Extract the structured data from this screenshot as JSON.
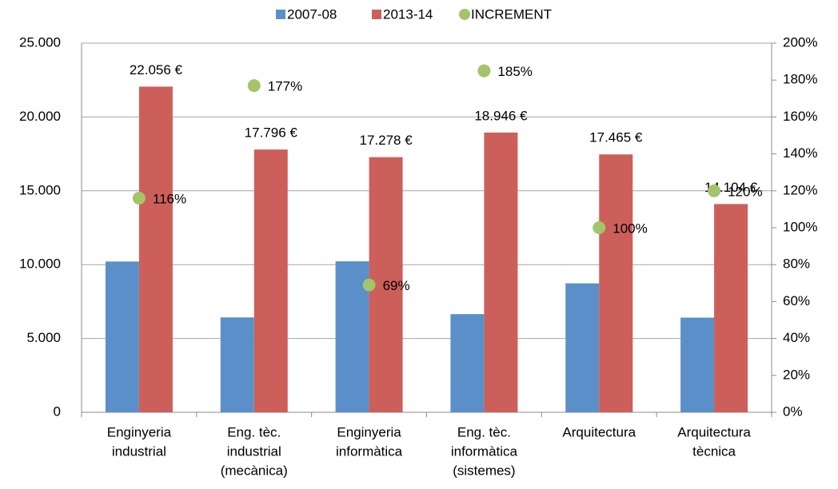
{
  "chart_data": {
    "type": "bar",
    "categories": [
      [
        "Enginyeria",
        "industrial"
      ],
      [
        "Eng. tèc.",
        "industrial",
        "(mecànica)"
      ],
      [
        "Enginyeria",
        "informàtica"
      ],
      [
        "Eng. tèc.",
        "informàtica",
        "(sistemes)"
      ],
      [
        "Arquitectura"
      ],
      [
        "Arquitectura",
        "tècnica"
      ]
    ],
    "series": [
      {
        "name": "2007-08",
        "color": "#5b8fc9",
        "values": [
          10210,
          6425,
          10224,
          6648,
          8733,
          6411
        ]
      },
      {
        "name": "2013-14",
        "color": "#cd5f5a",
        "values": [
          22056,
          17796,
          17278,
          18946,
          17465,
          14104
        ],
        "value_labels": [
          "22.056 €",
          "17.796 €",
          "17.278 €",
          "18.946 €",
          "17.465 €",
          "14.104 €"
        ]
      },
      {
        "name": "INCREMENT",
        "color": "#a3c468",
        "axis": "y2",
        "values": [
          116,
          177,
          69,
          185,
          100,
          120
        ],
        "value_labels": [
          "116%",
          "177%",
          "69%",
          "185%",
          "100%",
          "120%"
        ]
      }
    ],
    "ylim": [
      0,
      25000
    ],
    "yticks": [
      0,
      {
        "value": 5000,
        "label": "5.000"
      },
      {
        "value": 10000,
        "label": "10.000"
      },
      {
        "value": 15000,
        "label": "15.000"
      },
      {
        "value": 20000,
        "label": "20.000"
      },
      {
        "value": 25000,
        "label": "25.000"
      }
    ],
    "y2lim": [
      0,
      200
    ],
    "y2ticks": [
      {
        "value": 0,
        "label": "0%"
      },
      {
        "value": 20,
        "label": "20%"
      },
      {
        "value": 40,
        "label": "40%"
      },
      {
        "value": 60,
        "label": "60%"
      },
      {
        "value": 80,
        "label": "80%"
      },
      {
        "value": 100,
        "label": "100%"
      },
      {
        "value": 120,
        "label": "120%"
      },
      {
        "value": 140,
        "label": "140%"
      },
      {
        "value": 160,
        "label": "160%"
      },
      {
        "value": 180,
        "label": "180%"
      },
      {
        "value": 200,
        "label": "200%"
      }
    ],
    "grid": true,
    "legend": "top"
  }
}
